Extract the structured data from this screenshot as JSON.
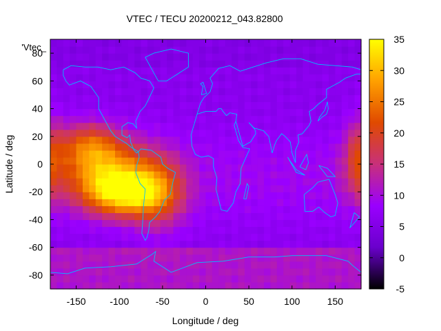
{
  "chart_data": {
    "type": "heatmap",
    "title": "VTEC / TECU 20200212_043.82800",
    "xlabel": "Longitude / deg",
    "ylabel": "Latitude / deg",
    "legend_key": "'Vtec_",
    "xlim": [
      -180,
      180
    ],
    "ylim": [
      -90,
      90
    ],
    "x_ticks": [
      -150,
      -100,
      -50,
      0,
      50,
      100,
      150
    ],
    "y_ticks": [
      -80,
      -60,
      -40,
      -20,
      0,
      20,
      40,
      60,
      80
    ],
    "colorbar": {
      "min": -5,
      "max": 35,
      "ticks": [
        -5,
        0,
        5,
        10,
        15,
        20,
        25,
        30,
        35
      ]
    },
    "grid": false,
    "cell_size_deg": [
      7.5,
      5
    ],
    "background_vtec": 6,
    "features": [
      {
        "name": "pacific-south-america-equatorial-anomaly",
        "lon": -115,
        "lat": -5,
        "peak_vtec": 27
      },
      {
        "name": "southern-lobe",
        "lon": -95,
        "lat": -22,
        "peak_vtec": 30
      },
      {
        "name": "northern-lobe",
        "lon": -135,
        "lat": 15,
        "peak_vtec": 20
      },
      {
        "name": "east-pacific-tail",
        "lon": -55,
        "lat": -20,
        "peak_vtec": 20
      },
      {
        "name": "date-line-enhancement",
        "lon": 178,
        "lat": 5,
        "peak_vtec": 17
      }
    ],
    "colors": {
      "coastline": "#00bfff",
      "palette": [
        "#000000",
        "#6a00cc",
        "#9a00ff",
        "#c8307a",
        "#e04a00",
        "#ffa000",
        "#ffff00"
      ]
    }
  }
}
